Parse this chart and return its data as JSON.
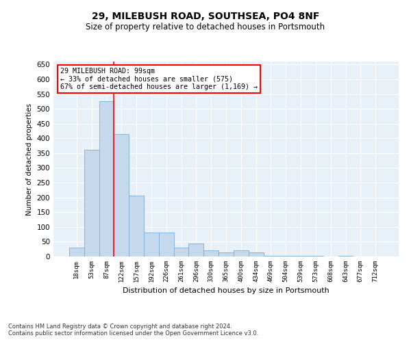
{
  "title1": "29, MILEBUSH ROAD, SOUTHSEA, PO4 8NF",
  "title2": "Size of property relative to detached houses in Portsmouth",
  "xlabel": "Distribution of detached houses by size in Portsmouth",
  "ylabel": "Number of detached properties",
  "bar_color": "#c5d8ec",
  "bar_edge_color": "#7aaed4",
  "background_color": "#e8f0f8",
  "categories": [
    "18sqm",
    "53sqm",
    "87sqm",
    "122sqm",
    "157sqm",
    "192sqm",
    "226sqm",
    "261sqm",
    "296sqm",
    "330sqm",
    "365sqm",
    "400sqm",
    "434sqm",
    "469sqm",
    "504sqm",
    "539sqm",
    "573sqm",
    "608sqm",
    "643sqm",
    "677sqm",
    "712sqm"
  ],
  "values": [
    30,
    362,
    525,
    415,
    205,
    80,
    80,
    30,
    45,
    22,
    15,
    20,
    15,
    3,
    3,
    3,
    3,
    1,
    3,
    1,
    1
  ],
  "property_bin_index": 2,
  "annotation_text": "29 MILEBUSH ROAD: 99sqm\n← 33% of detached houses are smaller (575)\n67% of semi-detached houses are larger (1,169) →",
  "vline_bin": 2,
  "ylim": [
    0,
    660
  ],
  "yticks": [
    0,
    50,
    100,
    150,
    200,
    250,
    300,
    350,
    400,
    450,
    500,
    550,
    600,
    650
  ],
  "footnote1": "Contains HM Land Registry data © Crown copyright and database right 2024.",
  "footnote2": "Contains public sector information licensed under the Open Government Licence v3.0."
}
